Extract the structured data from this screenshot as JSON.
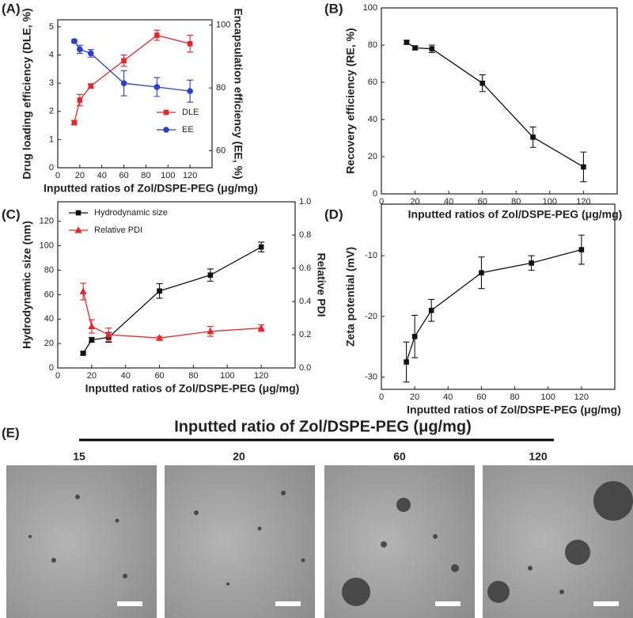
{
  "chart_data": [
    {
      "panel": "(A)",
      "type": "line",
      "xlabel": "Inputted ratios of Zol/DSPE-PEG (μg/mg)",
      "ylabel": "Drug loading efficiency (DLE, %)",
      "y2label": "Encapsulation efficiency (EE, %)",
      "x": [
        15,
        20,
        30,
        60,
        90,
        120
      ],
      "xlim": [
        0,
        140
      ],
      "xticks": [
        0,
        20,
        40,
        60,
        80,
        100,
        120
      ],
      "ylim": [
        0,
        5.25
      ],
      "yticks": [
        0,
        1,
        2,
        3,
        4,
        5
      ],
      "y2lim": [
        54.6,
        101.7
      ],
      "y2ticks": [
        60,
        80,
        100
      ],
      "legend": "lower right",
      "series": [
        {
          "name": "DLE",
          "color": "#e8262b",
          "marker": "square",
          "values": [
            1.6,
            2.4,
            2.9,
            3.8,
            4.7,
            4.4
          ],
          "errors": [
            0.08,
            0.2,
            0.08,
            0.2,
            0.18,
            0.3
          ]
        },
        {
          "name": "EE",
          "color": "#2a3fd1",
          "marker": "circle",
          "axis": "y2",
          "values": [
            94.9,
            92.3,
            91,
            81.5,
            80.3,
            79
          ],
          "errors": [
            0.5,
            1.3,
            1.2,
            4,
            3,
            3.5
          ]
        }
      ]
    },
    {
      "panel": "(B)",
      "type": "line",
      "xlabel": "Inputted ratios of Zol/DSPE-PEG (μg/mg)",
      "ylabel": "Recovery efficiency (RE, %)",
      "x": [
        15,
        20,
        30,
        60,
        90,
        120
      ],
      "xlim": [
        0,
        140
      ],
      "xticks": [
        0,
        20,
        40,
        60,
        80,
        100,
        120
      ],
      "ylim": [
        0,
        100
      ],
      "yticks": [
        0,
        20,
        40,
        60,
        80,
        100
      ],
      "series": [
        {
          "color": "#111111",
          "marker": "square",
          "values": [
            81.5,
            78.5,
            78,
            59.5,
            30.5,
            14.5
          ],
          "errors": [
            1,
            1,
            2,
            4.5,
            5.5,
            8
          ]
        }
      ]
    },
    {
      "panel": "(C)",
      "type": "line",
      "xlabel": "Inputted ratios of Zol/DSPE-PEG (μg/mg)",
      "ylabel": "Hydrodynamic size (nm)",
      "y2label": "Relative PDI",
      "x": [
        15,
        20,
        30,
        60,
        90,
        120
      ],
      "xlim": [
        0,
        140
      ],
      "xticks": [
        0,
        20,
        40,
        60,
        80,
        100,
        120
      ],
      "ylim": [
        0,
        136
      ],
      "yticks": [
        0,
        20,
        40,
        60,
        80,
        100,
        120
      ],
      "y2lim": [
        0,
        1
      ],
      "y2ticks": [
        {
          "value": 0,
          "label": "0.0"
        },
        0.2,
        0.4,
        0.6,
        0.8,
        {
          "value": 1,
          "label": "1.0"
        }
      ],
      "legend": "upper left",
      "series": [
        {
          "name": "Hydrodynamic size",
          "color": "#111111",
          "marker": "square",
          "values": [
            12,
            23,
            25,
            63,
            76,
            99
          ],
          "errors": [
            1,
            2,
            4,
            6,
            5,
            4
          ]
        },
        {
          "name": "Relative PDI",
          "color": "#e8262b",
          "marker": "triangle",
          "axis": "y2",
          "values": [
            0.46,
            0.25,
            0.2,
            0.18,
            0.22,
            0.24
          ],
          "errors": [
            0.05,
            0.04,
            0.04,
            0.01,
            0.03,
            0.02
          ]
        }
      ]
    },
    {
      "panel": "(D)",
      "type": "line",
      "xlabel": "Inputted ratios of Zol/DSPE-PEG (μg/mg)",
      "ylabel": "Zeta potential (mV)",
      "x": [
        15,
        20,
        30,
        60,
        90,
        120
      ],
      "xlim": [
        0,
        140
      ],
      "xticks": [
        0,
        20,
        40,
        60,
        80,
        100,
        120
      ],
      "ylim": [
        -32,
        -1.5
      ],
      "yticks": [
        -30,
        -20,
        -10
      ],
      "series": [
        {
          "color": "#111111",
          "marker": "square",
          "values": [
            -27.5,
            -23.3,
            -19,
            -12.8,
            -11.2,
            -9
          ],
          "errors": [
            3.3,
            3.5,
            1.8,
            2.6,
            1.2,
            2.4
          ]
        }
      ]
    }
  ],
  "panel_e": {
    "label": "(E)",
    "title": "Inputted ratio of Zol/DSPE-PEG (μg/mg)",
    "images": [
      "15",
      "20",
      "60",
      "120"
    ]
  }
}
